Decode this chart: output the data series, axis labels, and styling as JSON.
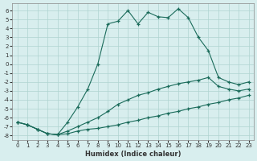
{
  "xlabel": "Humidex (Indice chaleur)",
  "bg_color": "#d8eeee",
  "grid_color": "#afd4d0",
  "line_color": "#1a6b5a",
  "xlim": [
    -0.5,
    23.5
  ],
  "ylim": [
    -8.5,
    6.8
  ],
  "xticks": [
    0,
    1,
    2,
    3,
    4,
    5,
    6,
    7,
    8,
    9,
    10,
    11,
    12,
    13,
    14,
    15,
    16,
    17,
    18,
    19,
    20,
    21,
    22,
    23
  ],
  "yticks": [
    6,
    5,
    4,
    3,
    2,
    1,
    0,
    -1,
    -2,
    -3,
    -4,
    -5,
    -6,
    -7,
    -8
  ],
  "hours": [
    0,
    1,
    2,
    3,
    4,
    5,
    6,
    7,
    8,
    9,
    10,
    11,
    12,
    13,
    14,
    15,
    16,
    17,
    18,
    19,
    20,
    21,
    22,
    23
  ],
  "max_vals": [
    -6.5,
    -6.8,
    -7.3,
    -7.8,
    -7.9,
    -6.5,
    -4.8,
    -2.8,
    0.0,
    4.5,
    4.8,
    6.0,
    4.5,
    5.8,
    5.3,
    5.2,
    6.2,
    5.2,
    3.0,
    1.5,
    -1.5,
    -2.0,
    -2.3,
    -2.0
  ],
  "avg_vals": [
    -6.5,
    -6.8,
    -7.3,
    -7.8,
    -7.9,
    -7.5,
    -7.0,
    -6.5,
    -6.0,
    -5.3,
    -4.5,
    -4.0,
    -3.5,
    -3.2,
    -2.8,
    -2.5,
    -2.2,
    -2.0,
    -1.8,
    -1.5,
    -2.5,
    -2.8,
    -3.0,
    -2.8
  ],
  "min_vals": [
    -6.5,
    -6.8,
    -7.3,
    -7.8,
    -7.9,
    -7.8,
    -7.5,
    -7.3,
    -7.2,
    -7.0,
    -6.8,
    -6.5,
    -6.3,
    -6.0,
    -5.8,
    -5.5,
    -5.3,
    -5.0,
    -4.8,
    -4.5,
    -4.3,
    -4.0,
    -3.8,
    -3.5
  ]
}
